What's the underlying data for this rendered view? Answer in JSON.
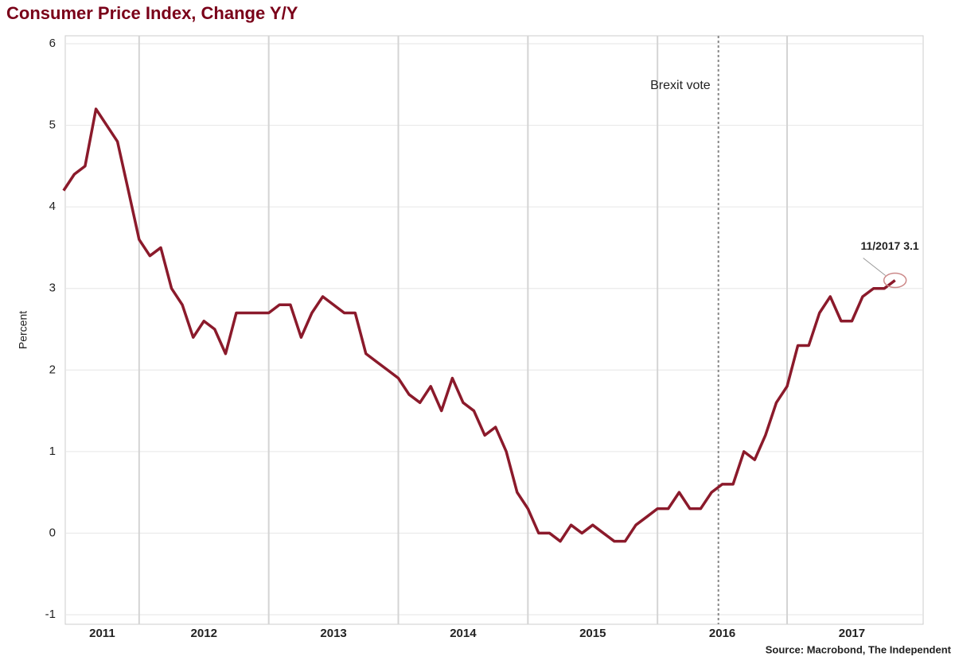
{
  "chart_data": {
    "type": "line",
    "title": "Consumer Price Index, Change Y/Y",
    "y_label": "Percent",
    "source": "Source: Macrobond, The Independent",
    "xlim": [
      2011.43,
      2018.05
    ],
    "xticks": [
      {
        "value": 2011,
        "label": "2011"
      },
      {
        "value": 2012,
        "label": "2012"
      },
      {
        "value": 2013,
        "label": "2013"
      },
      {
        "value": 2014,
        "label": "2014"
      },
      {
        "value": 2015,
        "label": "2015"
      },
      {
        "value": 2016,
        "label": "2016"
      },
      {
        "value": 2017,
        "label": "2017"
      }
    ],
    "ylim": [
      -1,
      6
    ],
    "yticks": [
      -1,
      0,
      1,
      2,
      3,
      4,
      5,
      6
    ],
    "grid": true,
    "annotations": [
      {
        "text": "Brexit vote",
        "x": 2016.47
      },
      {
        "text": "11/2017 3.1"
      }
    ],
    "x": [
      2011.417,
      2011.5,
      2011.583,
      2011.667,
      2011.75,
      2011.833,
      2011.917,
      2012.0,
      2012.083,
      2012.167,
      2012.25,
      2012.333,
      2012.417,
      2012.5,
      2012.583,
      2012.667,
      2012.75,
      2012.833,
      2012.917,
      2013.0,
      2013.083,
      2013.167,
      2013.25,
      2013.333,
      2013.417,
      2013.5,
      2013.583,
      2013.667,
      2013.75,
      2013.833,
      2013.917,
      2014.0,
      2014.083,
      2014.167,
      2014.25,
      2014.333,
      2014.417,
      2014.5,
      2014.583,
      2014.667,
      2014.75,
      2014.833,
      2014.917,
      2015.0,
      2015.083,
      2015.167,
      2015.25,
      2015.333,
      2015.417,
      2015.5,
      2015.583,
      2015.667,
      2015.75,
      2015.833,
      2015.917,
      2016.0,
      2016.083,
      2016.167,
      2016.25,
      2016.333,
      2016.417,
      2016.5,
      2016.583,
      2016.667,
      2016.75,
      2016.833,
      2016.917,
      2017.0,
      2017.083,
      2017.167,
      2017.25,
      2017.333,
      2017.417,
      2017.5,
      2017.583,
      2017.667,
      2017.75,
      2017.833
    ],
    "series": [
      {
        "name": "CPI",
        "color": "#8b1a2b",
        "values": [
          4.2,
          4.4,
          4.5,
          5.2,
          5.0,
          4.8,
          4.2,
          3.6,
          3.4,
          3.5,
          3.0,
          2.8,
          2.4,
          2.6,
          2.5,
          2.2,
          2.7,
          2.7,
          2.7,
          2.7,
          2.8,
          2.8,
          2.4,
          2.7,
          2.9,
          2.8,
          2.7,
          2.7,
          2.2,
          2.1,
          2.0,
          1.9,
          1.7,
          1.6,
          1.8,
          1.5,
          1.9,
          1.6,
          1.5,
          1.2,
          1.3,
          1.0,
          0.5,
          0.3,
          0.0,
          0.0,
          -0.1,
          0.1,
          0.0,
          0.1,
          0.0,
          -0.1,
          -0.1,
          0.1,
          0.2,
          0.3,
          0.3,
          0.5,
          0.3,
          0.3,
          0.5,
          0.6,
          0.6,
          1.0,
          0.9,
          1.2,
          1.6,
          1.8,
          2.3,
          2.3,
          2.7,
          2.9,
          2.6,
          2.6,
          2.9,
          3.0,
          3.0,
          3.1
        ]
      }
    ]
  }
}
